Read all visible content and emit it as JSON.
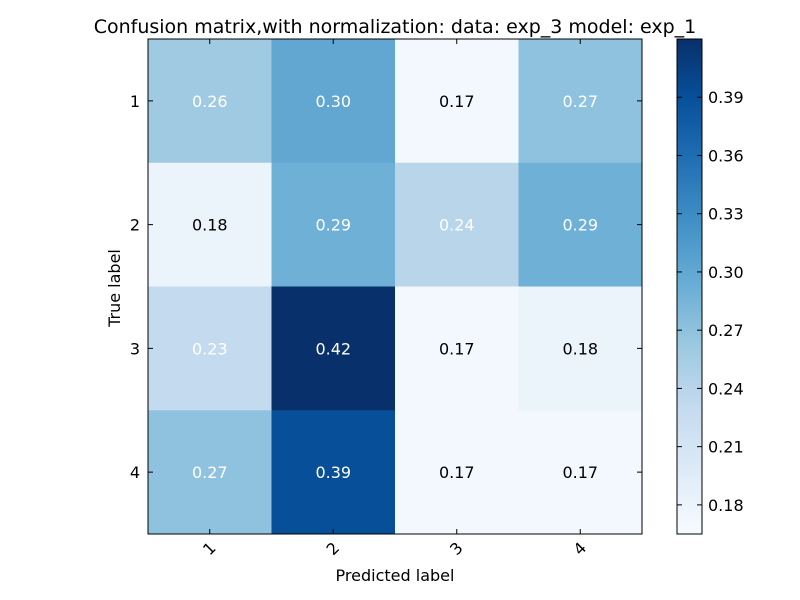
{
  "chart_data": {
    "type": "heatmap",
    "title": "Confusion matrix,with normalization: data: exp_3 model: exp_1",
    "xlabel": "Predicted label",
    "ylabel": "True label",
    "x_categories": [
      "1",
      "2",
      "3",
      "4"
    ],
    "y_categories": [
      "1",
      "2",
      "3",
      "4"
    ],
    "values": [
      [
        0.26,
        0.3,
        0.17,
        0.27
      ],
      [
        0.18,
        0.29,
        0.24,
        0.29
      ],
      [
        0.23,
        0.42,
        0.17,
        0.18
      ],
      [
        0.27,
        0.39,
        0.17,
        0.17
      ]
    ],
    "value_labels": [
      [
        "0.26",
        "0.30",
        "0.17",
        "0.27"
      ],
      [
        "0.18",
        "0.29",
        "0.24",
        "0.29"
      ],
      [
        "0.23",
        "0.42",
        "0.17",
        "0.18"
      ],
      [
        "0.27",
        "0.39",
        "0.17",
        "0.17"
      ]
    ],
    "colormap": "Blues",
    "colorbar": {
      "range": [
        0.165,
        0.42
      ],
      "ticks": [
        "0.18",
        "0.21",
        "0.24",
        "0.27",
        "0.30",
        "0.33",
        "0.36",
        "0.39"
      ]
    },
    "text_colors": {
      "light_cell": "#000000",
      "dark_cell": "#ffffff"
    },
    "x_tick_rotation": -45
  }
}
